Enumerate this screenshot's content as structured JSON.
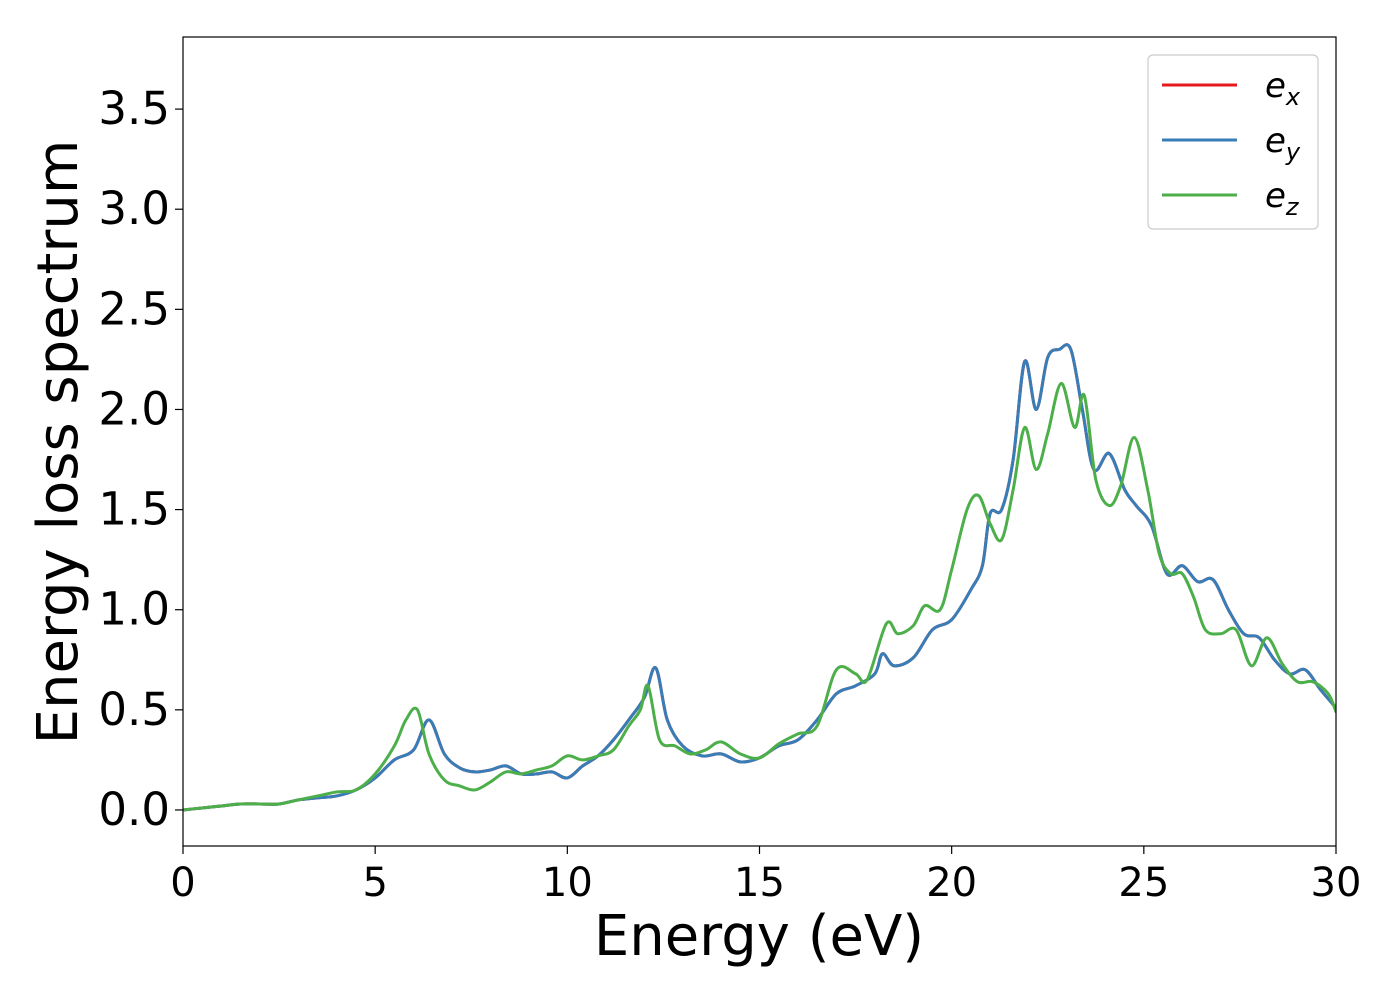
{
  "chart_data": {
    "type": "line",
    "title": "",
    "xlabel": "Energy (eV)",
    "ylabel": "Energy loss spectrum",
    "xlim": [
      0,
      30
    ],
    "ylim": [
      -0.18,
      3.86
    ],
    "xticks": [
      0,
      5,
      10,
      15,
      20,
      25,
      30
    ],
    "xtick_labels": [
      "0",
      "5",
      "10",
      "15",
      "20",
      "25",
      "30"
    ],
    "yticks": [
      0.0,
      0.5,
      1.0,
      1.5,
      2.0,
      2.5,
      3.0,
      3.5
    ],
    "ytick_labels": [
      "0.0",
      "0.5",
      "1.0",
      "1.5",
      "2.0",
      "2.5",
      "3.0",
      "3.5"
    ],
    "grid": false,
    "legend_position": "top-right",
    "series": [
      {
        "name": "e_x",
        "label_base": "e",
        "label_sub": "x",
        "color": "#e41a1c",
        "x": [
          0,
          0.5,
          1,
          1.5,
          2,
          2.5,
          3,
          3.5,
          4,
          4.5,
          5,
          5.5,
          6,
          6.4,
          6.8,
          7.2,
          7.6,
          8,
          8.4,
          8.8,
          9.2,
          9.6,
          10,
          10.4,
          10.8,
          11.2,
          11.6,
          12,
          12.3,
          12.6,
          13,
          13.5,
          14,
          14.5,
          15,
          15.5,
          16,
          16.5,
          17,
          17.5,
          18,
          18.2,
          18.5,
          19,
          19.5,
          20,
          20.5,
          20.8,
          21,
          21.3,
          21.6,
          21.9,
          22.2,
          22.5,
          22.8,
          23.1,
          23.4,
          23.7,
          24.1,
          24.5,
          24.8,
          25.2,
          25.6,
          26,
          26.4,
          26.8,
          27.2,
          27.6,
          28,
          28.4,
          28.8,
          29.2,
          29.6,
          30
        ],
        "y": [
          0.0,
          0.01,
          0.02,
          0.03,
          0.03,
          0.03,
          0.05,
          0.06,
          0.07,
          0.1,
          0.16,
          0.25,
          0.3,
          0.45,
          0.28,
          0.21,
          0.19,
          0.2,
          0.22,
          0.18,
          0.18,
          0.19,
          0.16,
          0.22,
          0.27,
          0.35,
          0.45,
          0.56,
          0.71,
          0.45,
          0.32,
          0.27,
          0.28,
          0.24,
          0.26,
          0.32,
          0.35,
          0.45,
          0.58,
          0.62,
          0.68,
          0.78,
          0.72,
          0.76,
          0.9,
          0.95,
          1.1,
          1.22,
          1.48,
          1.5,
          1.75,
          2.24,
          2.0,
          2.26,
          2.3,
          2.3,
          2.0,
          1.7,
          1.78,
          1.6,
          1.52,
          1.42,
          1.18,
          1.22,
          1.14,
          1.15,
          1.0,
          0.88,
          0.86,
          0.75,
          0.68,
          0.7,
          0.6,
          0.51
        ]
      },
      {
        "name": "e_y",
        "label_base": "e",
        "label_sub": "y",
        "color": "#377eb8",
        "x": [
          0,
          0.5,
          1,
          1.5,
          2,
          2.5,
          3,
          3.5,
          4,
          4.5,
          5,
          5.5,
          6,
          6.4,
          6.8,
          7.2,
          7.6,
          8,
          8.4,
          8.8,
          9.2,
          9.6,
          10,
          10.4,
          10.8,
          11.2,
          11.6,
          12,
          12.3,
          12.6,
          13,
          13.5,
          14,
          14.5,
          15,
          15.5,
          16,
          16.5,
          17,
          17.5,
          18,
          18.2,
          18.5,
          19,
          19.5,
          20,
          20.5,
          20.8,
          21,
          21.3,
          21.6,
          21.9,
          22.2,
          22.5,
          22.8,
          23.1,
          23.4,
          23.7,
          24.1,
          24.5,
          24.8,
          25.2,
          25.6,
          26,
          26.4,
          26.8,
          27.2,
          27.6,
          28,
          28.4,
          28.8,
          29.2,
          29.6,
          30
        ],
        "y": [
          0.0,
          0.01,
          0.02,
          0.03,
          0.03,
          0.03,
          0.05,
          0.06,
          0.07,
          0.1,
          0.16,
          0.25,
          0.3,
          0.45,
          0.28,
          0.21,
          0.19,
          0.2,
          0.22,
          0.18,
          0.18,
          0.19,
          0.16,
          0.22,
          0.27,
          0.35,
          0.45,
          0.56,
          0.71,
          0.45,
          0.32,
          0.27,
          0.28,
          0.24,
          0.26,
          0.32,
          0.35,
          0.45,
          0.58,
          0.62,
          0.68,
          0.78,
          0.72,
          0.76,
          0.9,
          0.95,
          1.1,
          1.22,
          1.48,
          1.5,
          1.75,
          2.24,
          2.0,
          2.26,
          2.3,
          2.3,
          2.0,
          1.7,
          1.78,
          1.6,
          1.52,
          1.42,
          1.18,
          1.22,
          1.14,
          1.15,
          1.0,
          0.88,
          0.86,
          0.75,
          0.68,
          0.7,
          0.6,
          0.51
        ]
      },
      {
        "name": "e_z",
        "label_base": "e",
        "label_sub": "z",
        "color": "#4daf4a",
        "x": [
          0,
          0.5,
          1,
          1.5,
          2,
          2.5,
          3,
          3.5,
          4,
          4.5,
          5,
          5.5,
          5.8,
          6.1,
          6.4,
          6.8,
          7.2,
          7.6,
          8,
          8.4,
          8.8,
          9.2,
          9.6,
          10,
          10.4,
          10.8,
          11.2,
          11.6,
          11.9,
          12.1,
          12.4,
          12.8,
          13.2,
          13.6,
          14,
          14.5,
          15,
          15.5,
          16,
          16.5,
          17,
          17.5,
          17.8,
          18.3,
          18.6,
          19,
          19.3,
          19.7,
          20,
          20.4,
          20.7,
          21,
          21.3,
          21.6,
          21.9,
          22.2,
          22.5,
          22.85,
          23.2,
          23.45,
          23.75,
          24.1,
          24.4,
          24.75,
          25.1,
          25.4,
          25.7,
          26,
          26.3,
          26.6,
          27,
          27.4,
          27.8,
          28.2,
          28.6,
          29,
          29.4,
          29.8,
          30
        ],
        "y": [
          0.0,
          0.01,
          0.02,
          0.03,
          0.03,
          0.03,
          0.05,
          0.07,
          0.09,
          0.1,
          0.18,
          0.32,
          0.45,
          0.5,
          0.28,
          0.15,
          0.12,
          0.1,
          0.14,
          0.19,
          0.18,
          0.2,
          0.22,
          0.27,
          0.25,
          0.27,
          0.3,
          0.42,
          0.5,
          0.62,
          0.35,
          0.32,
          0.28,
          0.3,
          0.34,
          0.28,
          0.26,
          0.33,
          0.38,
          0.42,
          0.7,
          0.68,
          0.65,
          0.93,
          0.88,
          0.92,
          1.02,
          1.0,
          1.2,
          1.5,
          1.57,
          1.43,
          1.35,
          1.6,
          1.91,
          1.7,
          1.88,
          2.13,
          1.91,
          2.07,
          1.65,
          1.52,
          1.62,
          1.86,
          1.6,
          1.28,
          1.18,
          1.18,
          1.06,
          0.9,
          0.88,
          0.9,
          0.72,
          0.86,
          0.73,
          0.64,
          0.64,
          0.58,
          0.49
        ]
      }
    ]
  }
}
